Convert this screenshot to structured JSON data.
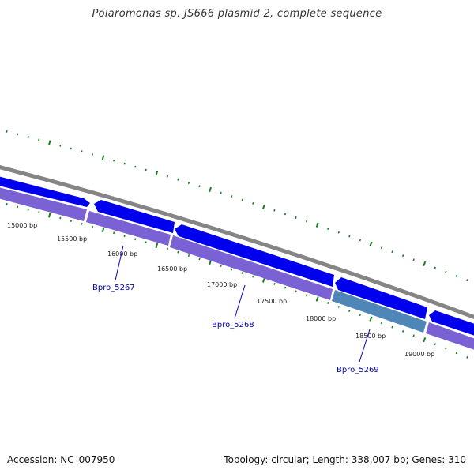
{
  "title": "Polaromonas sp. JS666 plasmid 2, complete sequence",
  "footer": {
    "accession": "Accession: NC_007950",
    "summary": "Topology: circular; Length: 338,007 bp; Genes: 310"
  },
  "colors": {
    "backbone": "#858585",
    "forward_gene": "#0000ee",
    "reverse_gene": "#7a62d4",
    "highlight_gene": "#4f86b8",
    "tick": "#1b7f1b",
    "gene_label": "#0000aa"
  },
  "scale": {
    "tick_labels": [
      "15000 bp",
      "15500 bp",
      "16000 bp",
      "16500 bp",
      "17000 bp",
      "17500 bp",
      "18000 bp",
      "18500 bp",
      "19000 bp"
    ]
  },
  "genes": {
    "labels": [
      "Bpro_5267",
      "Bpro_5268",
      "Bpro_5269"
    ]
  }
}
